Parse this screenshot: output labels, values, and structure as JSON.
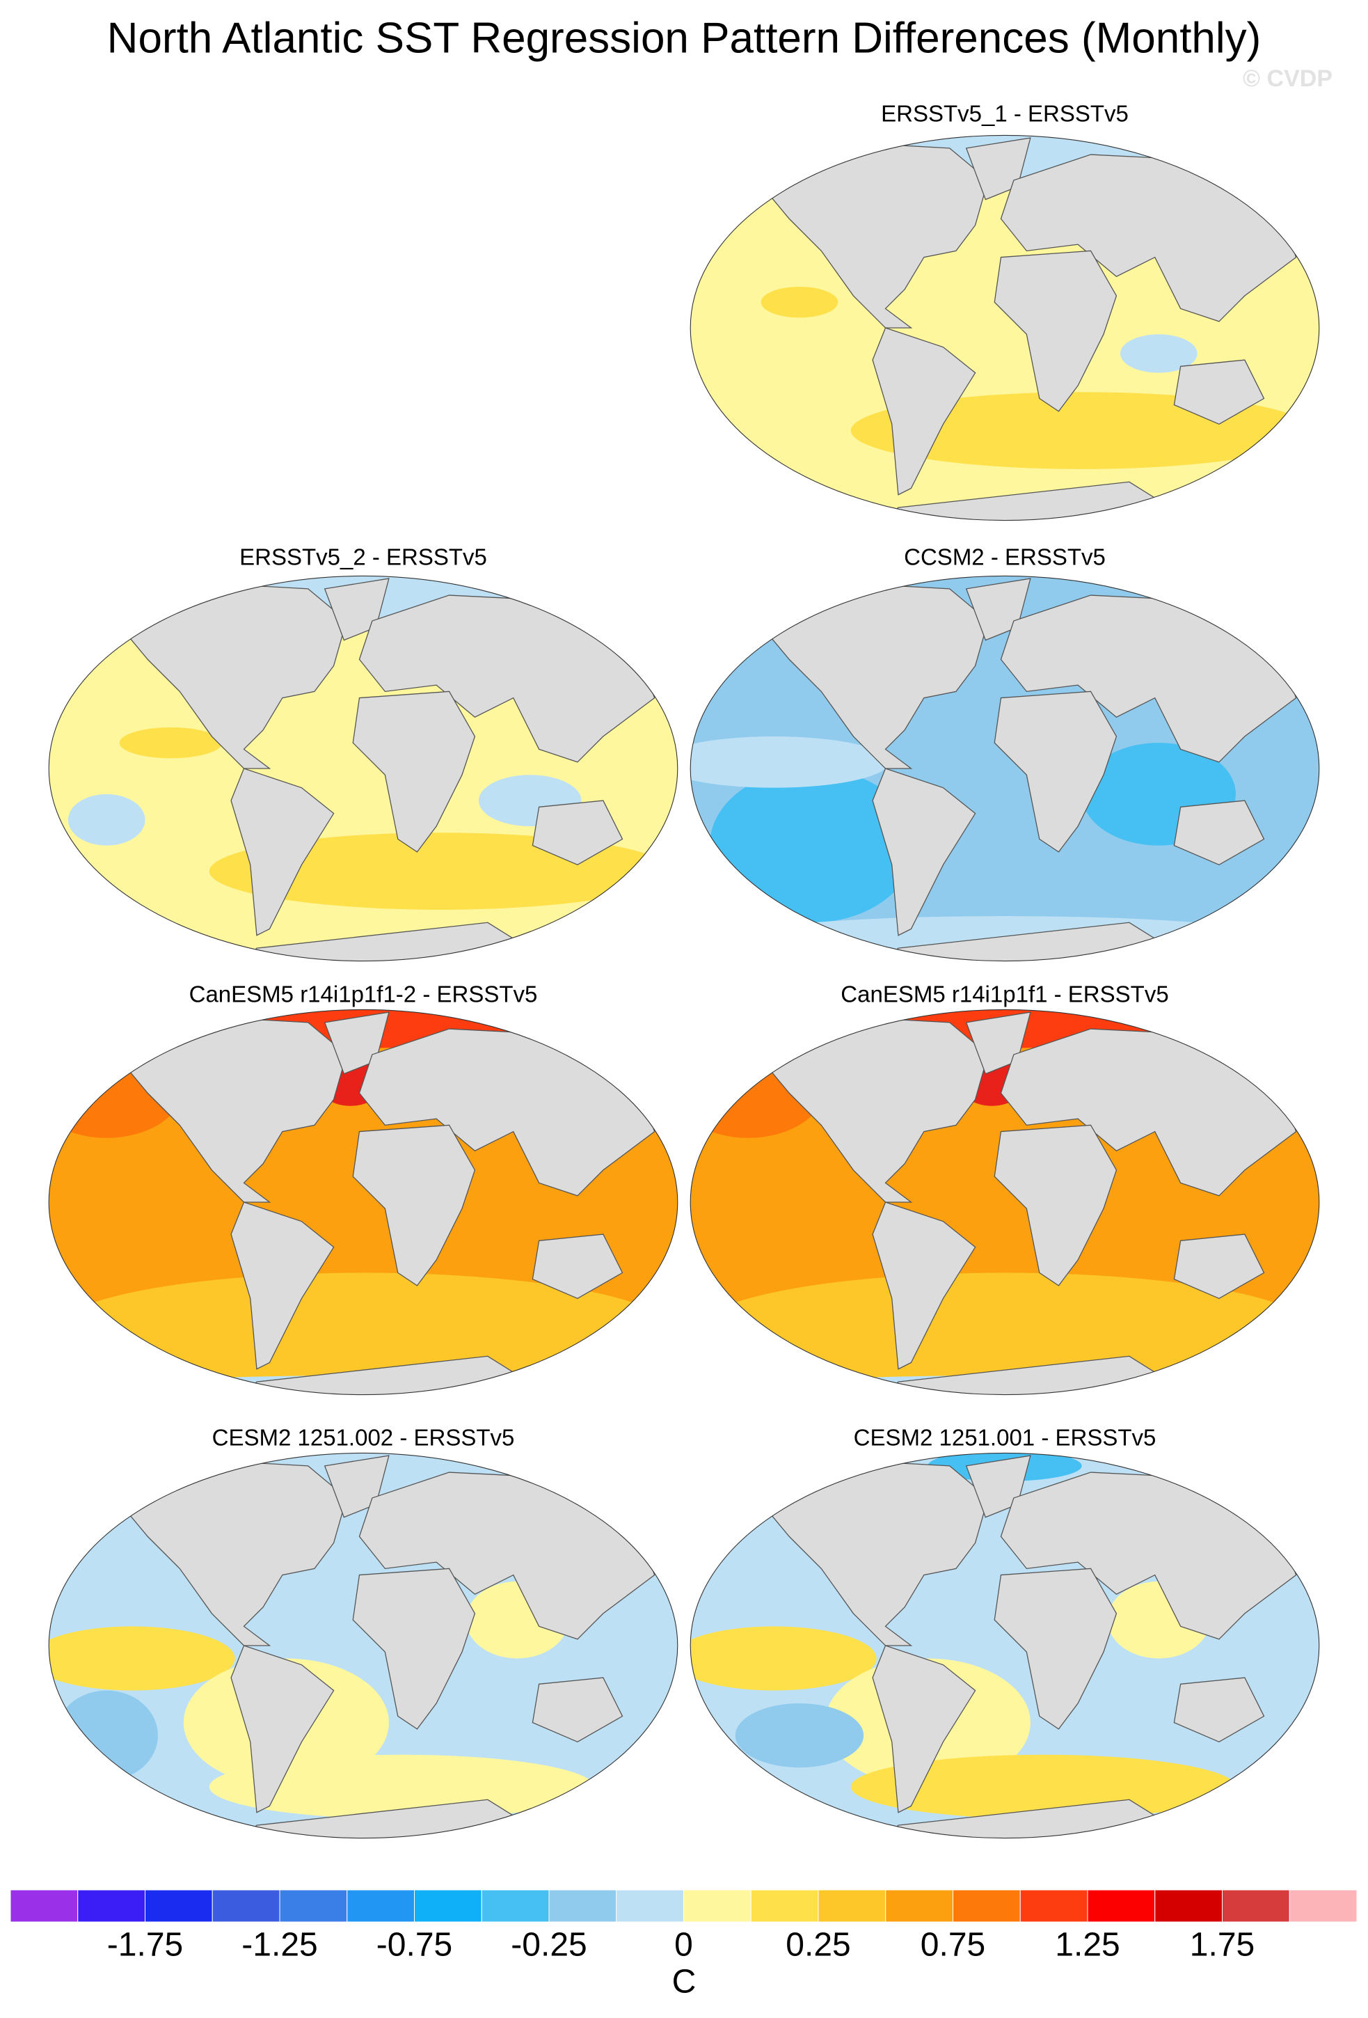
{
  "title": "North Atlantic SST Regression Pattern Differences (Monthly)",
  "watermark": "© CVDP",
  "panels": [
    {
      "title": "ERSSTv5_1 - ERSSTv5"
    },
    {
      "title": "ERSSTv5_2 - ERSSTv5"
    },
    {
      "title": "CCSM2 - ERSSTv5"
    },
    {
      "title": "CanESM5 r14i1p1f1-2 - ERSSTv5"
    },
    {
      "title": "CanESM5 r14i1p1f1 - ERSSTv5"
    },
    {
      "title": "CESM2 1251.002 - ERSSTv5"
    },
    {
      "title": "CESM2 1251.001 - ERSSTv5"
    }
  ],
  "colorbar": {
    "colors": [
      "#9a30e8",
      "#3a1ef5",
      "#1a2cf0",
      "#3c5ce0",
      "#3a7ee8",
      "#2196f3",
      "#10b0f8",
      "#46c0f2",
      "#90cbee",
      "#bde0f5",
      "#fff79e",
      "#fde04a",
      "#fdc72a",
      "#fca00f",
      "#fd7a0a",
      "#fd3c10",
      "#fc0000",
      "#d40000",
      "#d63c3c",
      "#fdb4b8"
    ],
    "ticks": [
      -1.75,
      -1.25,
      -0.75,
      -0.25,
      0,
      0.25,
      0.75,
      1.25,
      1.75
    ],
    "units": "C"
  }
}
